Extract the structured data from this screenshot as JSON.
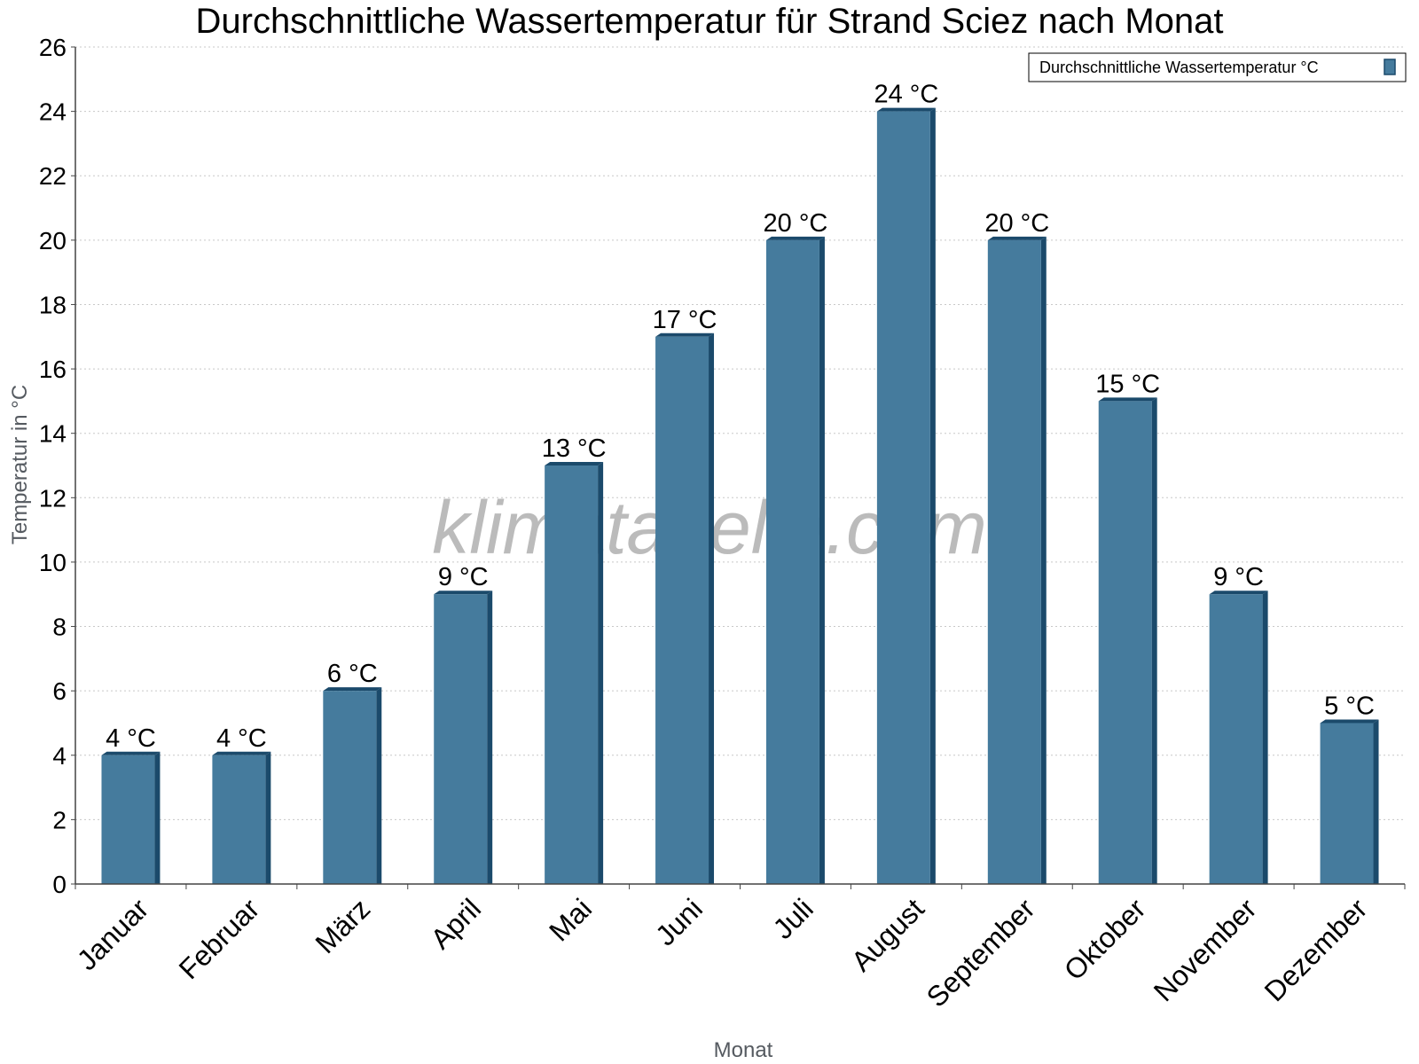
{
  "chart_data": {
    "type": "bar",
    "title": "Durchschnittliche Wassertemperatur für Strand Sciez nach Monat",
    "xlabel": "Monat",
    "ylabel": "Temperatur in °C",
    "ylim": [
      0,
      26
    ],
    "yticks": [
      0,
      2,
      4,
      6,
      8,
      10,
      12,
      14,
      16,
      18,
      20,
      22,
      24,
      26
    ],
    "grid": true,
    "legend_position": "top-right",
    "categories": [
      "Januar",
      "Februar",
      "März",
      "April",
      "Mai",
      "Juni",
      "Juli",
      "August",
      "September",
      "Oktober",
      "November",
      "Dezember"
    ],
    "series": [
      {
        "name": "Durchschnittliche Wassertemperatur °C",
        "values": [
          4,
          4,
          6,
          9,
          13,
          17,
          20,
          24,
          20,
          15,
          9,
          5
        ],
        "labels": [
          "4 °C",
          "4 °C",
          "6 °C",
          "9 °C",
          "13 °C",
          "17 °C",
          "20 °C",
          "24 °C",
          "20 °C",
          "15 °C",
          "9 °C",
          "5 °C"
        ],
        "color": "#457b9d",
        "edge_color": "#1b4a6b"
      }
    ],
    "watermark": "klimatabelle.com"
  }
}
